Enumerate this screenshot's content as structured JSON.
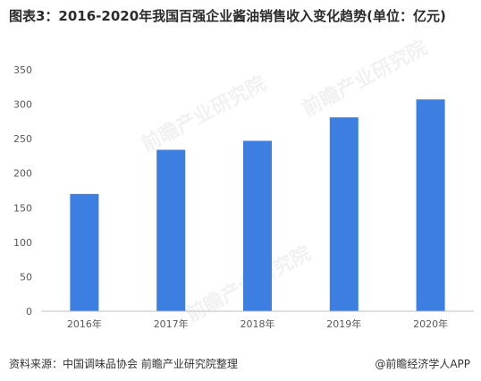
{
  "title": "图表3：2016-2020年我国百强企业酱油销售收入变化趋势(单位：亿元)",
  "footer": {
    "source": "资料来源：中国调味品协会 前瞻产业研究院整理",
    "brand": "@前瞻经济学人APP"
  },
  "watermark": "前瞻产业研究院",
  "colors": {
    "bar": "#3d7fe0",
    "axis": "#bfbfbf",
    "tick_text": "#595959"
  },
  "chart_data": {
    "type": "bar",
    "title": "图表3：2016-2020年我国百强企业酱油销售收入变化趋势(单位：亿元)",
    "categories": [
      "2016年",
      "2017年",
      "2018年",
      "2019年",
      "2020年"
    ],
    "values": [
      170,
      234,
      247,
      281,
      307
    ],
    "ylim": [
      0,
      350
    ],
    "yticks": [
      "0",
      "50",
      "100",
      "150",
      "200",
      "250",
      "300",
      "350"
    ],
    "ytick_values": [
      0,
      50,
      100,
      150,
      200,
      250,
      300,
      350
    ],
    "grid": false,
    "legend": "none"
  }
}
